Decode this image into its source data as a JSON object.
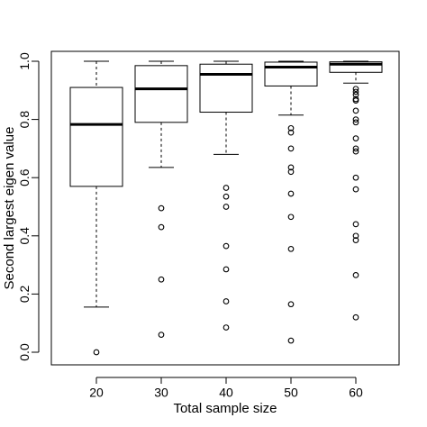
{
  "chart_data": {
    "type": "box",
    "title": "",
    "xlabel": "Total sample size",
    "ylabel": "Second largest eigen value",
    "ylim": [
      -0.04,
      1.04
    ],
    "grid": false,
    "legend": "none",
    "y_ticks": [
      "0.0",
      "0.2",
      "0.4",
      "0.6",
      "0.8",
      "1.0"
    ],
    "categories": [
      "20",
      "30",
      "40",
      "50",
      "60"
    ],
    "boxes": [
      {
        "category": "20",
        "whisker_low": 0.155,
        "q1": 0.57,
        "median": 0.783,
        "q3": 0.91,
        "whisker_high": 1.0,
        "outliers": [
          0.0
        ]
      },
      {
        "category": "30",
        "whisker_low": 0.635,
        "q1": 0.79,
        "median": 0.905,
        "q3": 0.985,
        "whisker_high": 1.0,
        "outliers": [
          0.495,
          0.43,
          0.25,
          0.06
        ]
      },
      {
        "category": "40",
        "whisker_low": 0.68,
        "q1": 0.825,
        "median": 0.955,
        "q3": 0.99,
        "whisker_high": 1.0,
        "outliers": [
          0.565,
          0.535,
          0.5,
          0.365,
          0.285,
          0.175,
          0.085
        ]
      },
      {
        "category": "50",
        "whisker_low": 0.815,
        "q1": 0.915,
        "median": 0.98,
        "q3": 0.997,
        "whisker_high": 1.0,
        "outliers": [
          0.77,
          0.755,
          0.7,
          0.635,
          0.62,
          0.545,
          0.465,
          0.355,
          0.165,
          0.04
        ]
      },
      {
        "category": "60",
        "whisker_low": 0.925,
        "q1": 0.962,
        "median": 0.99,
        "q3": 0.998,
        "whisker_high": 1.0,
        "outliers": [
          0.905,
          0.895,
          0.885,
          0.87,
          0.865,
          0.83,
          0.8,
          0.79,
          0.735,
          0.7,
          0.69,
          0.6,
          0.56,
          0.44,
          0.4,
          0.385,
          0.265,
          0.12
        ]
      }
    ]
  }
}
